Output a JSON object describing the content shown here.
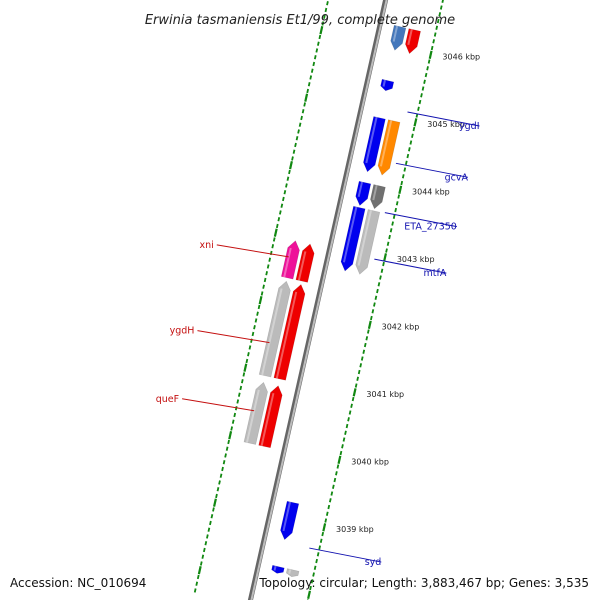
{
  "title": "Erwinia tasmaniensis Et1/99, complete genome",
  "footer": {
    "accession": "Accession: NC_010694",
    "topology": "Topology: circular; Length: 3,883,467 bp; Genes: 3,535"
  },
  "ticks": [
    {
      "label": "3046 kbp",
      "kbp": 3046
    },
    {
      "label": "3045 kbp",
      "kbp": 3045
    },
    {
      "label": "3044 kbp",
      "kbp": 3044
    },
    {
      "label": "3043 kbp",
      "kbp": 3043
    },
    {
      "label": "3042 kbp",
      "kbp": 3042
    },
    {
      "label": "3041 kbp",
      "kbp": 3041
    },
    {
      "label": "3040 kbp",
      "kbp": 3040
    },
    {
      "label": "3039 kbp",
      "kbp": 3039
    }
  ],
  "gene_labels": [
    {
      "name": "ygdI",
      "strand": "forward",
      "kbp": 3045.12
    },
    {
      "name": "gcvA",
      "strand": "forward",
      "kbp": 3044.36
    },
    {
      "name": "ETA_27350",
      "strand": "forward",
      "kbp": 3043.63
    },
    {
      "name": "mtfA",
      "strand": "forward",
      "kbp": 3042.94
    },
    {
      "name": "xni",
      "strand": "reverse",
      "kbp": 3042.7
    },
    {
      "name": "ygdH",
      "strand": "reverse",
      "kbp": 3041.43
    },
    {
      "name": "queF",
      "strand": "reverse",
      "kbp": 3040.42
    },
    {
      "name": "syd",
      "strand": "forward",
      "kbp": 3038.66
    }
  ],
  "features": [
    {
      "track": "fwd-cds",
      "start": 3045.95,
      "end": 3046.3,
      "color": "#4477bb",
      "direction": "forward"
    },
    {
      "track": "fwd-gene",
      "start": 3045.95,
      "end": 3046.3,
      "color": "#ee0000",
      "direction": "forward"
    },
    {
      "track": "fwd-cds",
      "start": 3045.35,
      "end": 3045.5,
      "color": "#0000ee",
      "direction": "forward"
    },
    {
      "track": "fwd-cds",
      "start": 3044.15,
      "end": 3044.95,
      "color": "#0000ee",
      "direction": "forward"
    },
    {
      "track": "fwd-gene",
      "start": 3044.15,
      "end": 3044.95,
      "color": "#ff8800",
      "direction": "forward"
    },
    {
      "track": "fwd-cds",
      "start": 3043.65,
      "end": 3043.99,
      "color": "#0000ee",
      "direction": "forward"
    },
    {
      "track": "fwd-gene",
      "start": 3043.65,
      "end": 3043.99,
      "color": "#707070",
      "direction": "forward"
    },
    {
      "track": "fwd-cds",
      "start": 3042.68,
      "end": 3043.62,
      "color": "#0000ee",
      "direction": "forward"
    },
    {
      "track": "fwd-gene",
      "start": 3042.68,
      "end": 3043.62,
      "color": "#bbbbbb",
      "direction": "forward"
    },
    {
      "track": "rev-gene",
      "start": 3042.4,
      "end": 3042.95,
      "color": "#ee1199",
      "direction": "reverse"
    },
    {
      "track": "rev-cds",
      "start": 3042.4,
      "end": 3042.95,
      "color": "#ee0000",
      "direction": "reverse"
    },
    {
      "track": "rev-gene",
      "start": 3040.95,
      "end": 3042.35,
      "color": "#bbbbbb",
      "direction": "reverse"
    },
    {
      "track": "rev-cds",
      "start": 3040.95,
      "end": 3042.35,
      "color": "#ee0000",
      "direction": "reverse"
    },
    {
      "track": "rev-gene",
      "start": 3039.95,
      "end": 3040.85,
      "color": "#bbbbbb",
      "direction": "reverse"
    },
    {
      "track": "rev-cds",
      "start": 3039.95,
      "end": 3040.85,
      "color": "#ee0000",
      "direction": "reverse"
    },
    {
      "track": "fwd-cds",
      "start": 3038.7,
      "end": 3039.25,
      "color": "#0000ee",
      "direction": "forward"
    },
    {
      "track": "fwd-cds",
      "start": 3038.2,
      "end": 3038.3,
      "color": "#0000ee",
      "direction": "forward"
    },
    {
      "track": "fwd-gene",
      "start": 3038.2,
      "end": 3038.3,
      "color": "#bbbbbb",
      "direction": "forward"
    }
  ],
  "colors": {
    "backbone": "#888888",
    "ruler_dashes": "#118811",
    "forward_leader": "#1414b0",
    "reverse_leader": "#c41010"
  }
}
